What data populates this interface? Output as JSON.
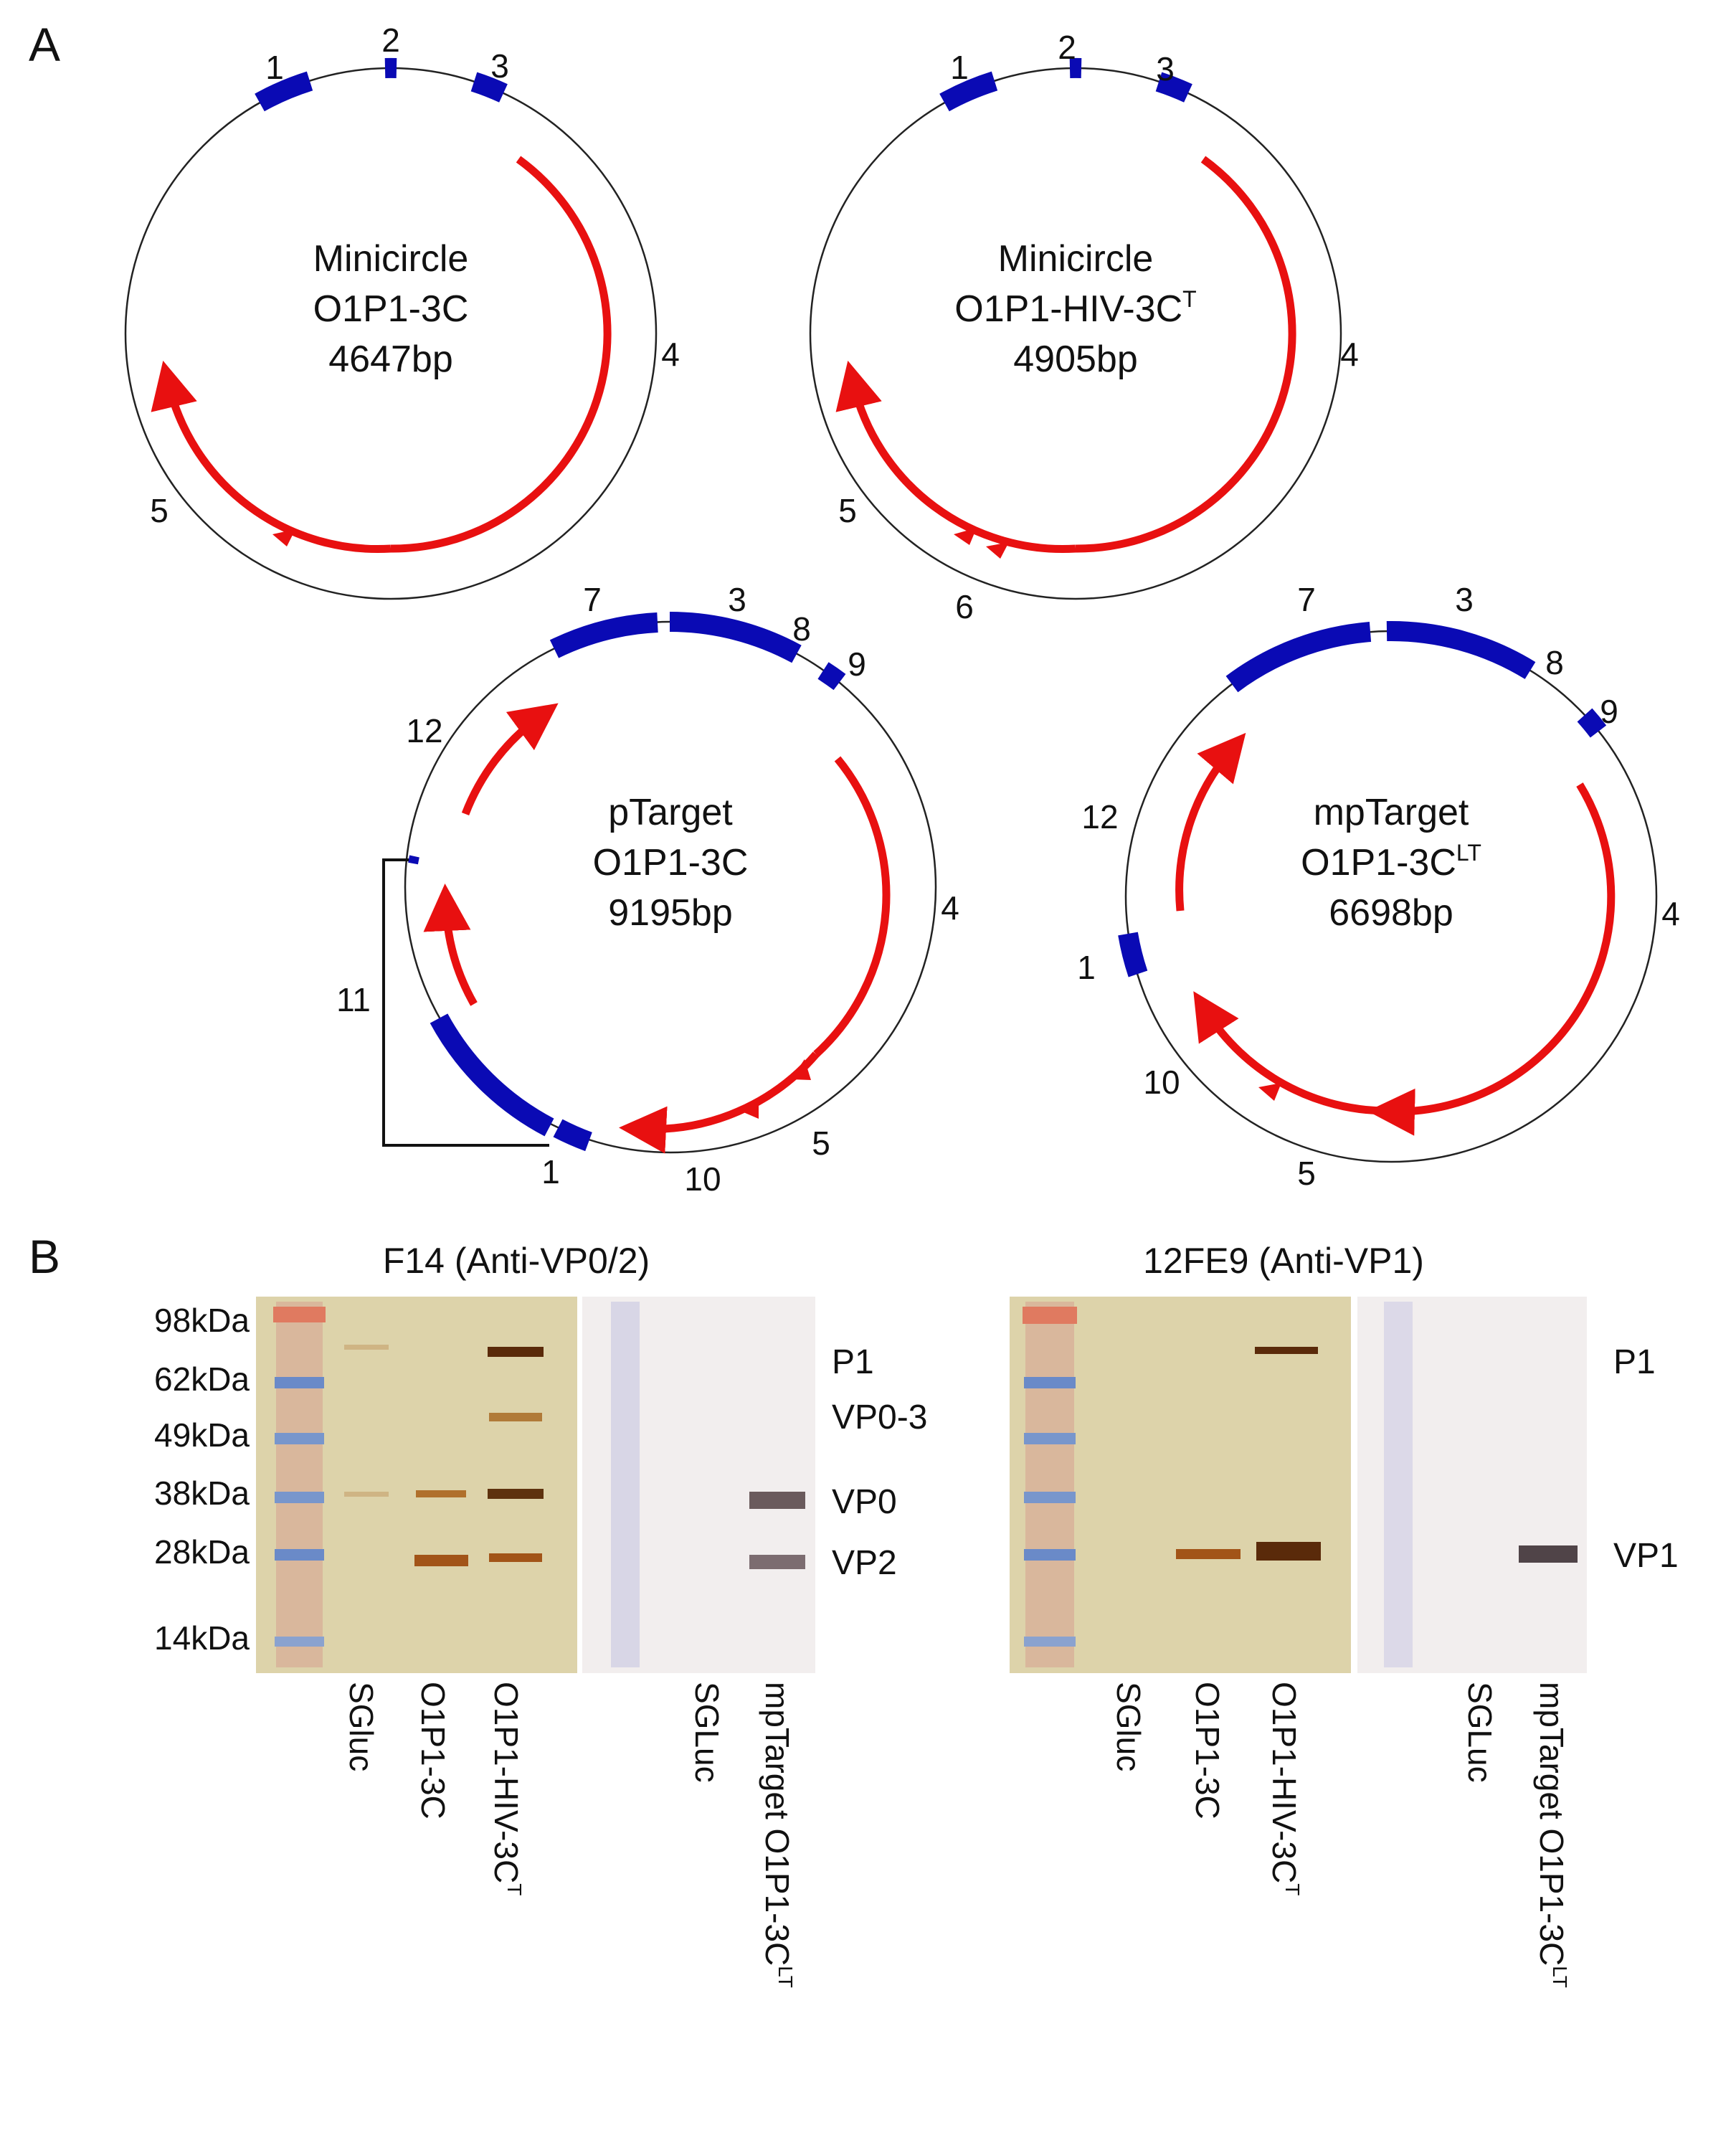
{
  "panel_a": {
    "label": "A",
    "maps": [
      {
        "id": "map1",
        "name_line1": "Minicircle",
        "name_line2": "O1P1-3C",
        "name_sup": "",
        "size": "4647bp",
        "feature_labels": [
          "1",
          "2",
          "3",
          "4",
          "5"
        ]
      },
      {
        "id": "map2",
        "name_line1": "Minicircle",
        "name_line2": "O1P1-HIV-3C",
        "name_sup": "T",
        "size": "4905bp",
        "feature_labels": [
          "1",
          "2",
          "3",
          "4",
          "5",
          "6"
        ]
      },
      {
        "id": "map3",
        "name_line1": "pTarget",
        "name_line2": "O1P1-3C",
        "name_sup": "",
        "size": "9195bp",
        "feature_labels": [
          "7",
          "3",
          "8",
          "9",
          "12",
          "4",
          "11",
          "5",
          "1",
          "10"
        ]
      },
      {
        "id": "map4",
        "name_line1": "mpTarget",
        "name_line2": "O1P1-3C",
        "name_sup": "LT",
        "size": "6698bp",
        "feature_labels": [
          "7",
          "3",
          "8",
          "9",
          "12",
          "4",
          "1",
          "10",
          "5"
        ]
      }
    ]
  },
  "panel_b": {
    "label": "B",
    "blots": [
      {
        "id": "blot-left",
        "title": "F14 (Anti-VP0/2)",
        "ladder": [
          "98kDa",
          "62kDa",
          "49kDa",
          "38kDa",
          "28kDa",
          "14kDa"
        ],
        "band_labels": [
          "P1",
          "VP0-3",
          "VP0",
          "VP2"
        ],
        "lanes": [
          {
            "text": "SGluc",
            "sup": ""
          },
          {
            "text": "O1P1-3C",
            "sup": ""
          },
          {
            "text": "O1P1-HIV-3C",
            "sup": "T"
          },
          {
            "text": "SGLuc",
            "sup": ""
          },
          {
            "text": "mpTarget O1P1-3C",
            "sup": "LT"
          }
        ]
      },
      {
        "id": "blot-right",
        "title": "12FE9 (Anti-VP1)",
        "band_labels": [
          "P1",
          "VP1"
        ],
        "lanes": [
          {
            "text": "SGluc",
            "sup": ""
          },
          {
            "text": "O1P1-3C",
            "sup": ""
          },
          {
            "text": "O1P1-HIV-3C",
            "sup": "T"
          },
          {
            "text": "SGLuc",
            "sup": ""
          },
          {
            "text": "mpTarget O1P1-3C",
            "sup": "LT"
          }
        ]
      }
    ]
  },
  "colors": {
    "feature_blue": "#0a0ab4",
    "orf_red": "#e81010",
    "silver_bg": "#ddd3aa",
    "wb_bg": "#f2eeee"
  }
}
